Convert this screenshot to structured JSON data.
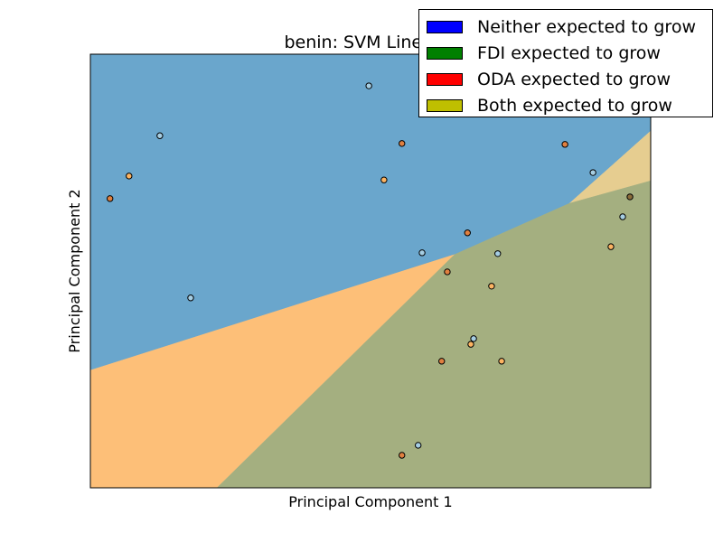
{
  "chart_data": {
    "type": "scatter",
    "title": "benin: SVM Linear-C",
    "xlabel": "Principal Component 1",
    "ylabel": "Principal Component 2",
    "xlim": [
      0,
      1
    ],
    "ylim": [
      0,
      1
    ],
    "grid": false,
    "legend_placement": "top-right",
    "legend": [
      {
        "label": "Neither expected to grow",
        "color": "#0000ff"
      },
      {
        "label": "FDI expected to grow",
        "color": "#008000"
      },
      {
        "label": "ODA expected to grow",
        "color": "#ff0000"
      },
      {
        "label": "Both expected to grow",
        "color": "#bfbf00"
      }
    ],
    "regions": [
      {
        "class": "Neither",
        "color": "#6aa6cc",
        "polygon": [
          [
            0,
            0.271
          ],
          [
            0.65,
            0.538
          ],
          [
            0.855,
            0.656
          ],
          [
            1,
            0.823
          ],
          [
            1,
            1
          ],
          [
            0,
            1
          ]
        ]
      },
      {
        "class": "ODA",
        "color": "#fdbf78",
        "polygon": [
          [
            0,
            0
          ],
          [
            0.226,
            0
          ],
          [
            0.65,
            0.538
          ],
          [
            0,
            0.271
          ]
        ]
      },
      {
        "class": "Both",
        "color": "#e6cd90",
        "polygon": [
          [
            0.855,
            0.656
          ],
          [
            1,
            0.823
          ],
          [
            1,
            0.708
          ]
        ]
      },
      {
        "class": "FDI",
        "color": "#a4af80",
        "polygon": [
          [
            0.226,
            0
          ],
          [
            1,
            0
          ],
          [
            1,
            0.708
          ],
          [
            0.855,
            0.656
          ],
          [
            0.65,
            0.538
          ]
        ]
      }
    ],
    "points": [
      {
        "x": 0.497,
        "y": 0.927,
        "class": "Neither"
      },
      {
        "x": 0.124,
        "y": 0.812,
        "class": "Neither"
      },
      {
        "x": 0.556,
        "y": 0.794,
        "class": "ODA-dark"
      },
      {
        "x": 0.847,
        "y": 0.792,
        "class": "ODA-dark"
      },
      {
        "x": 0.069,
        "y": 0.719,
        "class": "ODA"
      },
      {
        "x": 0.524,
        "y": 0.71,
        "class": "ODA"
      },
      {
        "x": 0.035,
        "y": 0.667,
        "class": "ODA-dark"
      },
      {
        "x": 0.897,
        "y": 0.727,
        "class": "Neither"
      },
      {
        "x": 0.963,
        "y": 0.671,
        "class": "Both-dark"
      },
      {
        "x": 0.95,
        "y": 0.625,
        "class": "Neither"
      },
      {
        "x": 0.673,
        "y": 0.588,
        "class": "ODA-dark"
      },
      {
        "x": 0.929,
        "y": 0.556,
        "class": "ODA"
      },
      {
        "x": 0.592,
        "y": 0.542,
        "class": "Neither"
      },
      {
        "x": 0.727,
        "y": 0.54,
        "class": "Neither"
      },
      {
        "x": 0.637,
        "y": 0.498,
        "class": "ODA-dark"
      },
      {
        "x": 0.716,
        "y": 0.465,
        "class": "ODA"
      },
      {
        "x": 0.179,
        "y": 0.438,
        "class": "Neither"
      },
      {
        "x": 0.684,
        "y": 0.344,
        "class": "Neither"
      },
      {
        "x": 0.679,
        "y": 0.331,
        "class": "ODA"
      },
      {
        "x": 0.627,
        "y": 0.292,
        "class": "ODA-dark"
      },
      {
        "x": 0.734,
        "y": 0.292,
        "class": "ODA"
      },
      {
        "x": 0.585,
        "y": 0.098,
        "class": "Neither"
      },
      {
        "x": 0.556,
        "y": 0.075,
        "class": "ODA-dark"
      }
    ],
    "point_colors": {
      "Neither": "#a6cee3",
      "ODA": "#fdb462",
      "ODA-dark": "#e08040",
      "Both-dark": "#8b6d3a"
    }
  }
}
